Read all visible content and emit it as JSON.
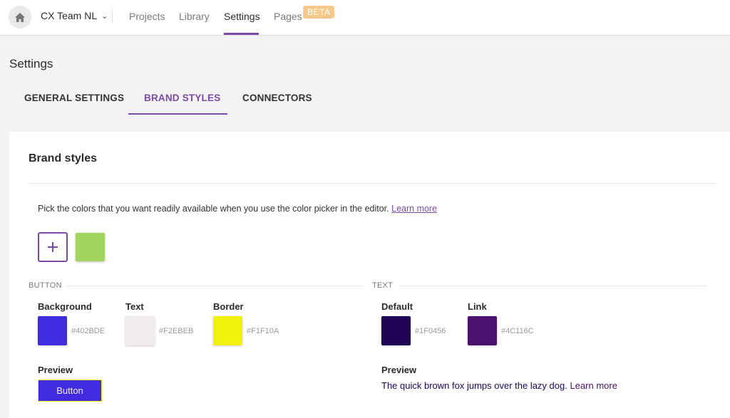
{
  "nav": {
    "team": "CX Team NL",
    "links": [
      "Projects",
      "Library",
      "Settings",
      "Pages"
    ],
    "beta": "BETA"
  },
  "page": {
    "title": "Settings",
    "tabs": [
      "GENERAL SETTINGS",
      "BRAND STYLES",
      "CONNECTORS"
    ]
  },
  "brand": {
    "title": "Brand styles",
    "intro": "Pick the colors that you want readily available when you use the color picker in the editor.",
    "learn_more": "Learn more",
    "palette": [
      "#A2D45E"
    ]
  },
  "button_section": {
    "label": "BUTTON",
    "fields": [
      {
        "label": "Background",
        "hex": "#402BDE"
      },
      {
        "label": "Text",
        "hex": "#F2EBEB"
      },
      {
        "label": "Border",
        "hex": "#F1F10A"
      }
    ],
    "preview_label": "Preview",
    "preview_button": "Button"
  },
  "text_section": {
    "label": "TEXT",
    "fields": [
      {
        "label": "Default",
        "hex": "#1F0456"
      },
      {
        "label": "Link",
        "hex": "#4C116C"
      }
    ],
    "preview_label": "Preview",
    "preview_sentence": "The quick brown fox jumps over the lazy dog.",
    "preview_link": "Learn more"
  },
  "colors": {
    "accent": "#7B4AA7",
    "beta_badge": "#F6C98A"
  }
}
